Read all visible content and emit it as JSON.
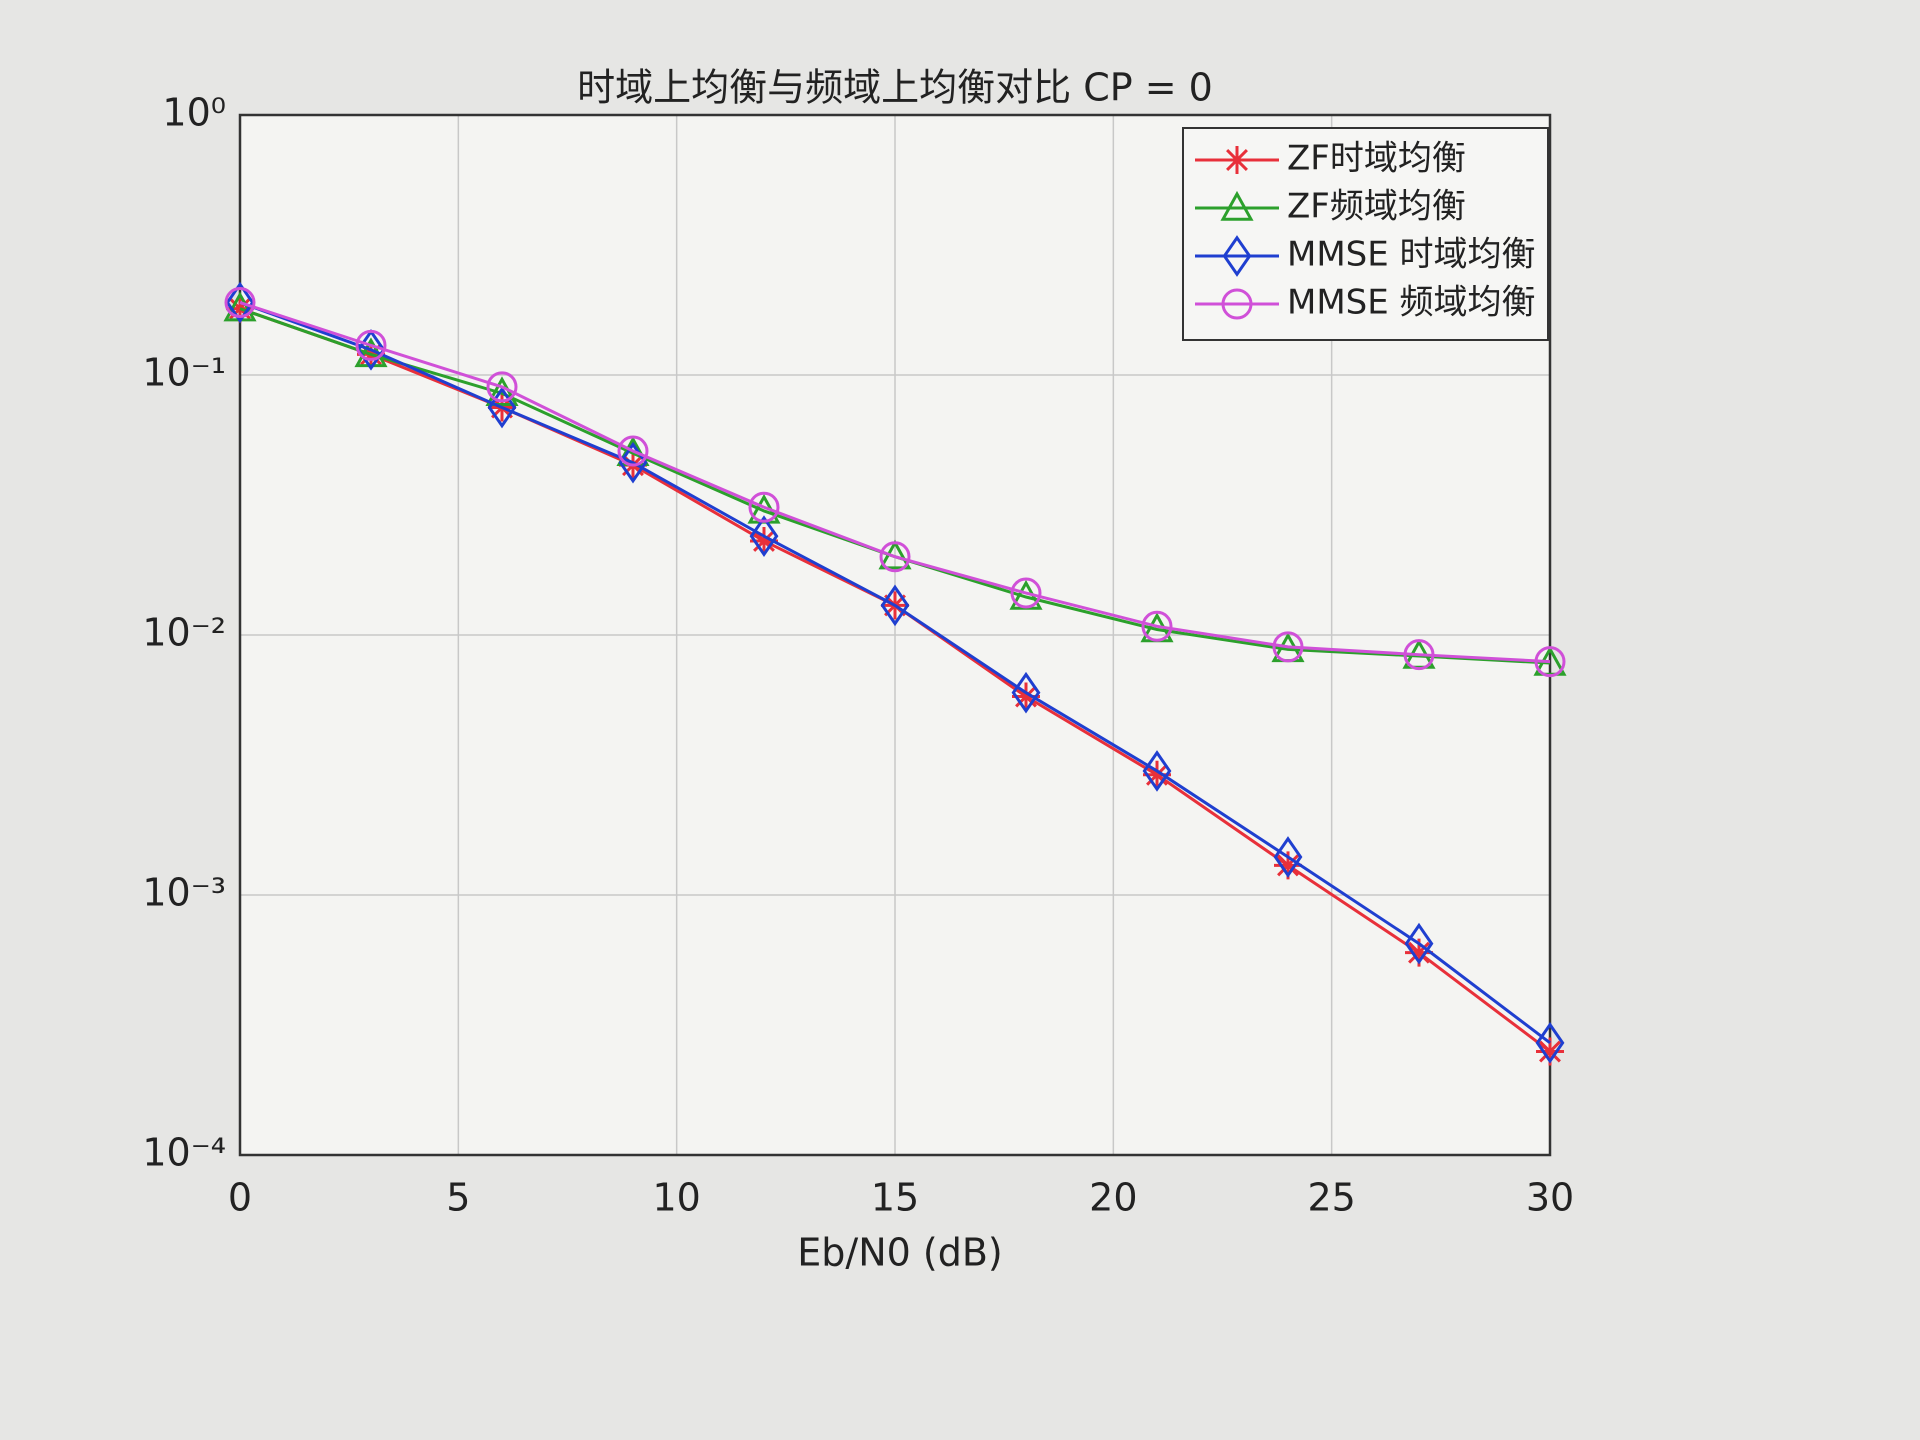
{
  "chart_data": {
    "type": "line",
    "title": "时域上均衡与频域上均衡对比  CP = 0",
    "x_label": "Eb/N0 (dB)",
    "x": [
      0,
      3,
      6,
      9,
      12,
      15,
      18,
      21,
      24,
      27,
      30
    ],
    "xlim": [
      0,
      30
    ],
    "xticks": [
      0,
      5,
      10,
      15,
      20,
      25,
      30
    ],
    "ylim": [
      0.0001,
      1
    ],
    "y_scale": "log",
    "yticks": [
      {
        "value": 0.0001,
        "label": "10⁻⁴"
      },
      {
        "value": 0.001,
        "label": "10⁻³"
      },
      {
        "value": 0.01,
        "label": "10⁻²"
      },
      {
        "value": 0.1,
        "label": "10⁻¹"
      },
      {
        "value": 1,
        "label": "10⁰"
      }
    ],
    "grid": true,
    "legend": "northeast",
    "series": [
      {
        "name": "ZF时域均衡",
        "color": "#e8303a",
        "marker": "star",
        "values": [
          0.18,
          0.12,
          0.075,
          0.045,
          0.023,
          0.013,
          0.0058,
          0.0029,
          0.0013,
          0.0006,
          0.00025
        ]
      },
      {
        "name": "ZF频域均衡",
        "color": "#2ca02c",
        "marker": "triangle",
        "values": [
          0.18,
          0.12,
          0.085,
          0.05,
          0.03,
          0.02,
          0.014,
          0.0105,
          0.0088,
          0.0083,
          0.0078
        ]
      },
      {
        "name": "MMSE 时域均衡",
        "color": "#1f3fd0",
        "marker": "diamond",
        "values": [
          0.19,
          0.125,
          0.075,
          0.046,
          0.024,
          0.013,
          0.006,
          0.003,
          0.0014,
          0.00065,
          0.00027
        ]
      },
      {
        "name": "MMSE 频域均衡",
        "color": "#d050d8",
        "marker": "circle",
        "values": [
          0.19,
          0.13,
          0.09,
          0.051,
          0.031,
          0.02,
          0.0145,
          0.0108,
          0.009,
          0.0084,
          0.0079
        ]
      }
    ]
  }
}
